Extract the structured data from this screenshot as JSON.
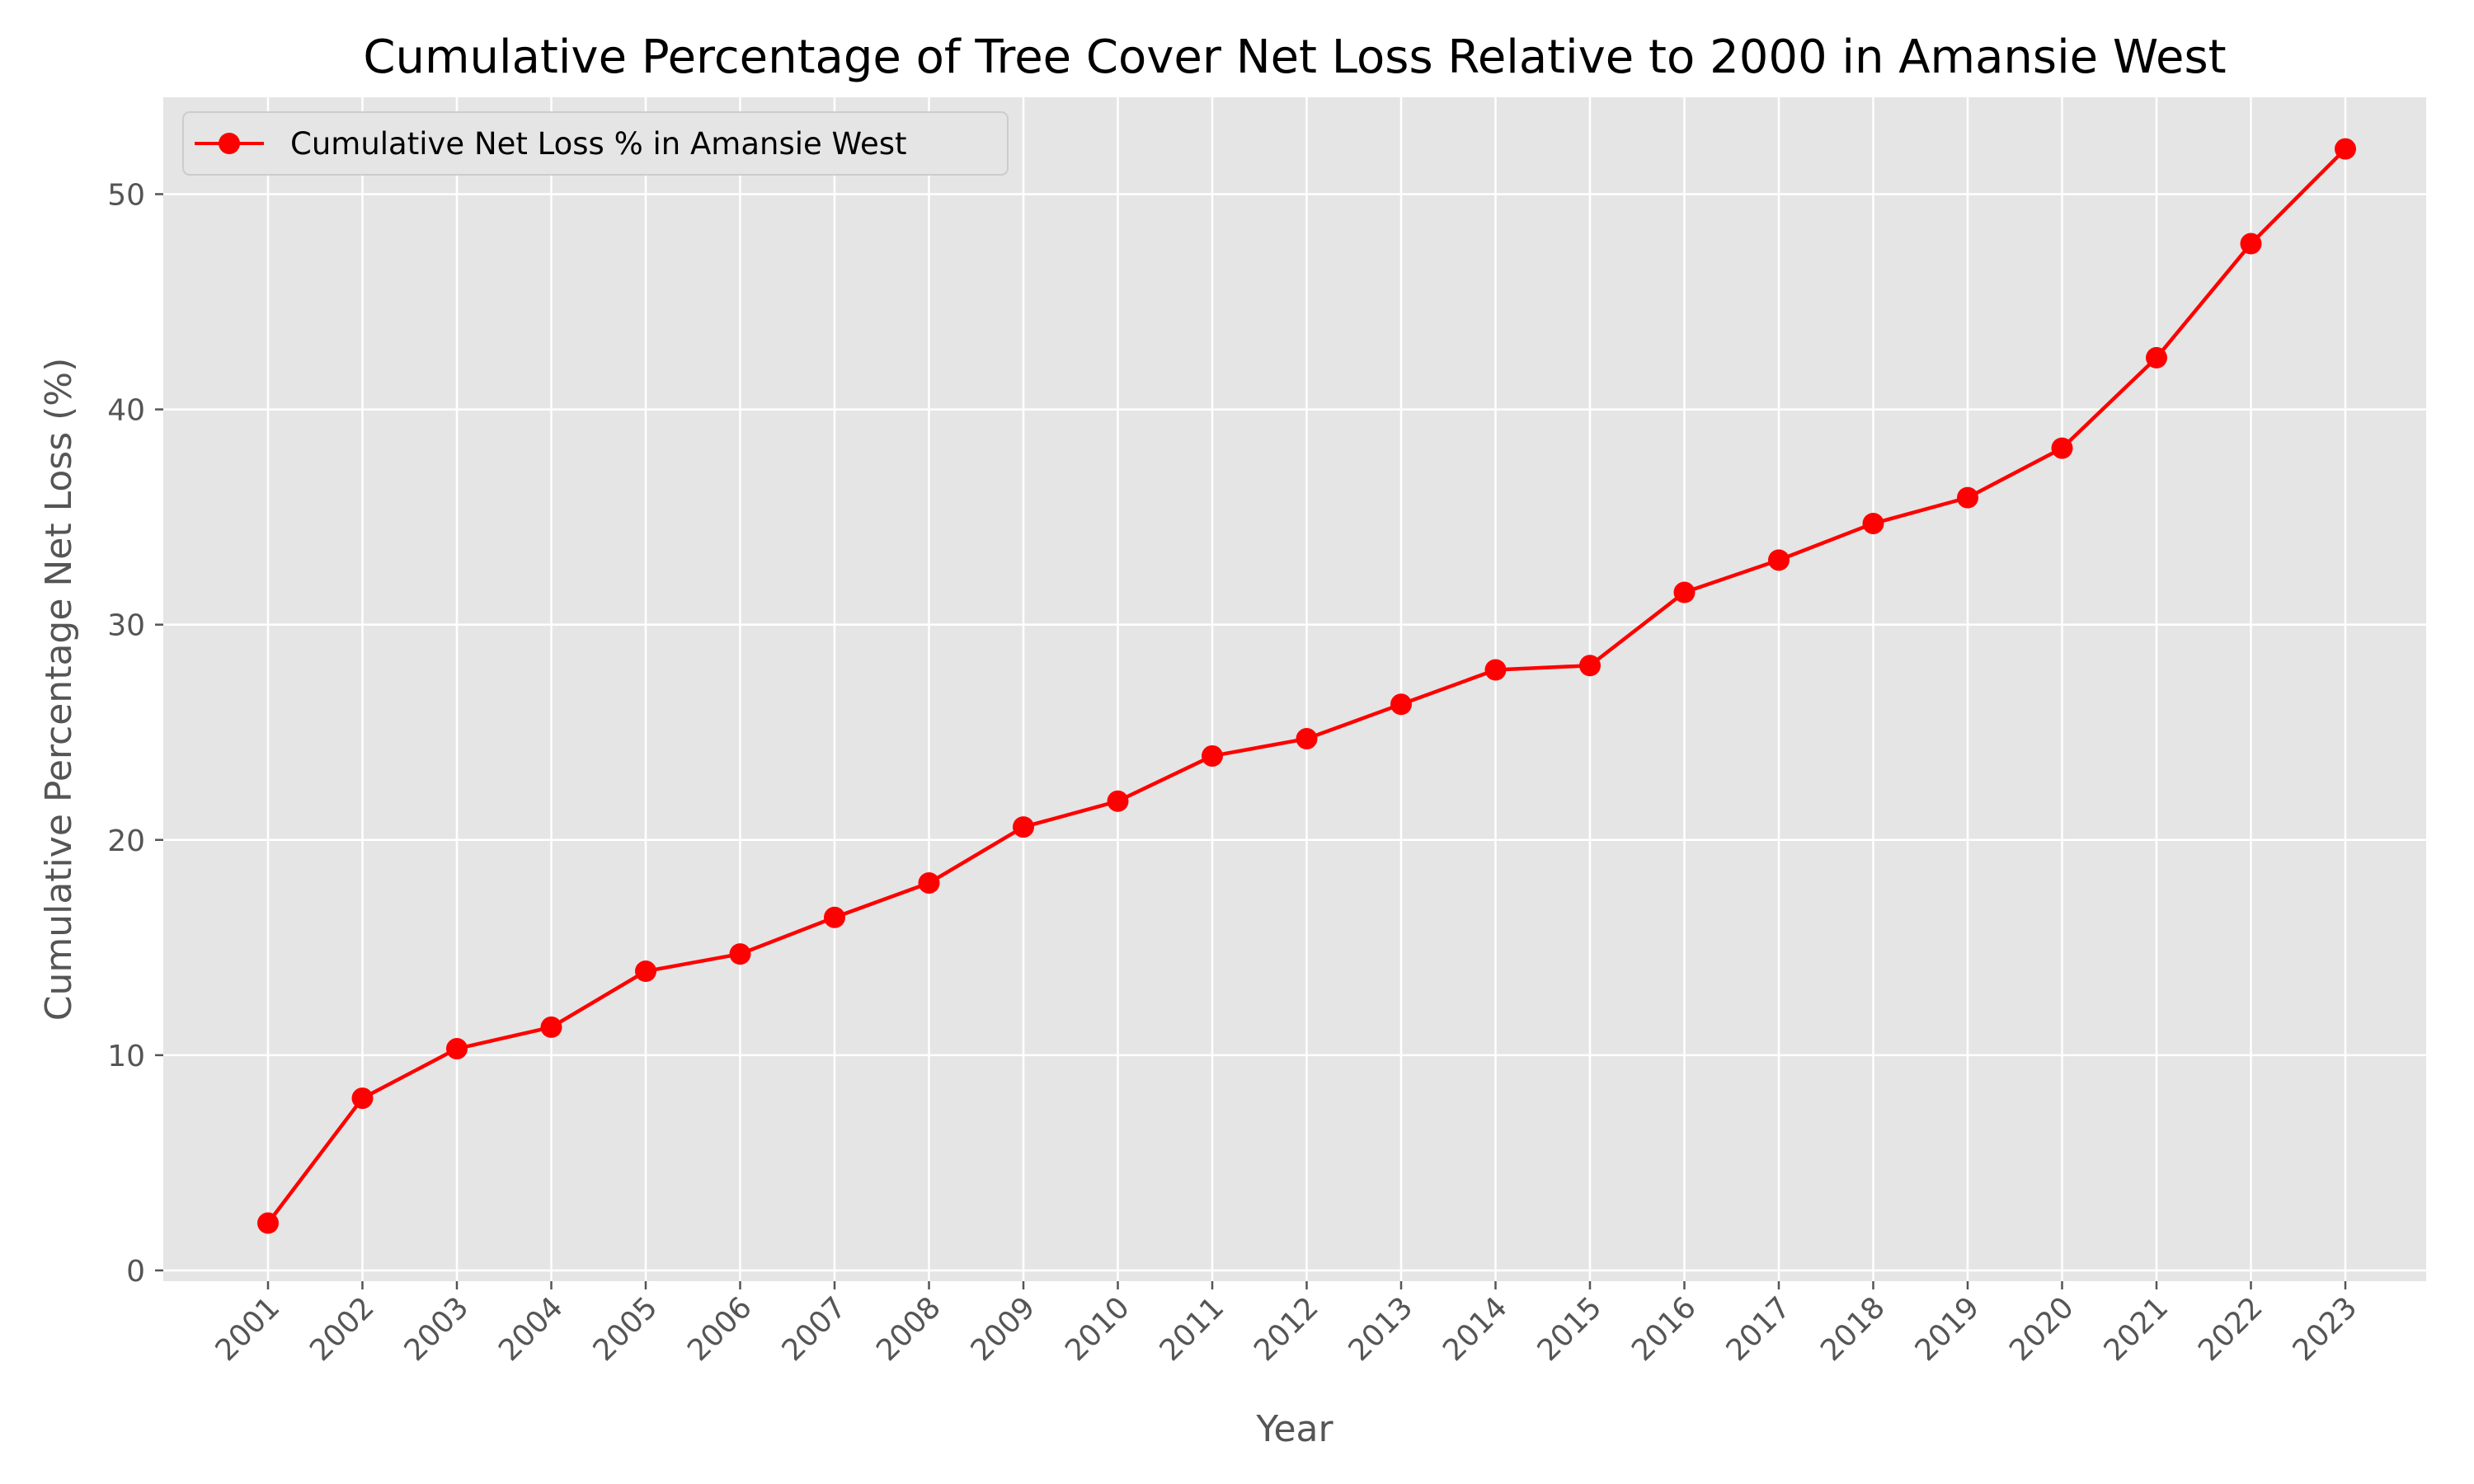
{
  "chart_data": {
    "type": "line",
    "title": "Cumulative Percentage of Tree Cover Net Loss Relative to 2000 in Amansie West",
    "xlabel": "Year",
    "ylabel": "Cumulative Percentage Net Loss (%)",
    "categories": [
      "2001",
      "2002",
      "2003",
      "2004",
      "2005",
      "2006",
      "2007",
      "2008",
      "2009",
      "2010",
      "2011",
      "2012",
      "2013",
      "2014",
      "2015",
      "2016",
      "2017",
      "2018",
      "2019",
      "2020",
      "2021",
      "2022",
      "2023"
    ],
    "series": [
      {
        "name": "Cumulative Net Loss % in Amansie West",
        "values": [
          2.2,
          8.0,
          10.3,
          11.3,
          13.9,
          14.7,
          16.4,
          18.0,
          20.6,
          21.8,
          23.9,
          24.7,
          26.3,
          27.9,
          28.1,
          31.5,
          33.0,
          34.7,
          35.9,
          38.2,
          42.4,
          47.7,
          52.1
        ],
        "color": "#ff0000"
      }
    ],
    "ylim": [
      -0.5,
      54.5
    ],
    "yticks": [
      0,
      10,
      20,
      30,
      40,
      50
    ],
    "grid": true,
    "legend": "upper-left",
    "plot_background": "#e5e5e5",
    "grid_color": "#ffffff"
  }
}
